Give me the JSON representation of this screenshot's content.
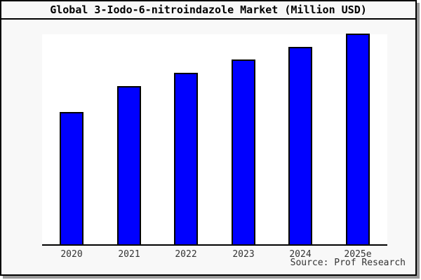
{
  "window": {
    "background": "#f8f8f8",
    "plot_background": "#ffffff",
    "border_color": "#000000",
    "shadow_color": "#999999"
  },
  "title": "Global 3-Iodo-6-nitroindazole Market (Million USD)",
  "source_note": "Source: Prof Research",
  "chart_data": {
    "type": "bar",
    "title": "Global 3-Iodo-6-nitroindazole Market (Million USD)",
    "categories": [
      "2020",
      "2021",
      "2022",
      "2023",
      "2024",
      "2025e"
    ],
    "values": [
      62.8,
      75.1,
      81.4,
      87.7,
      93.7,
      100
    ],
    "value_note": "No y-axis ticks or data labels are shown in the chart; values are relative bar heights with the tallest (2025e) normalized to 100.",
    "xlabel": "",
    "ylabel": "",
    "ylim": [
      0,
      100
    ],
    "grid": false,
    "legend": false,
    "bar_color": "#0000ff",
    "bar_border_color": "#000000",
    "axis_line_color": "#000000",
    "source": "Source: Prof Research"
  }
}
